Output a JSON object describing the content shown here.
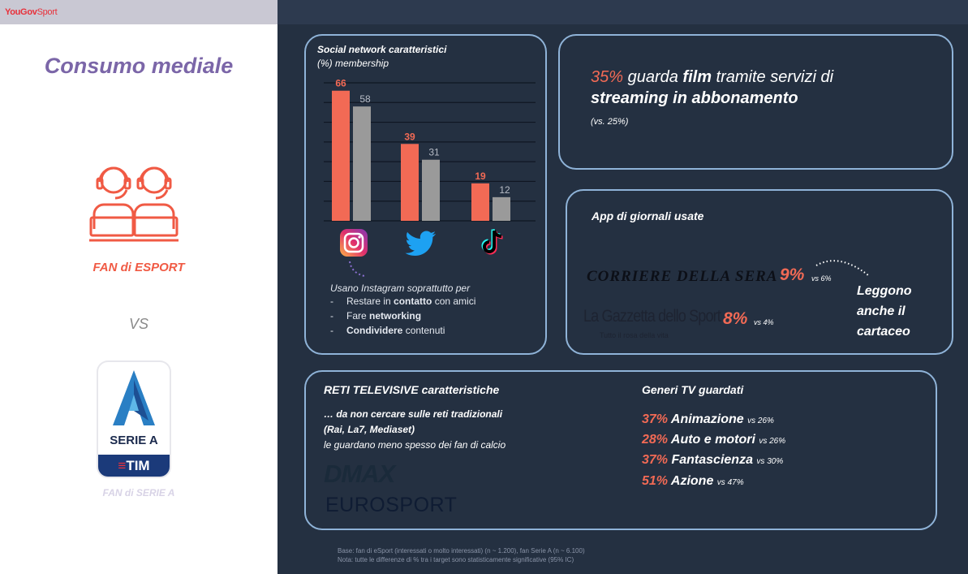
{
  "brand": {
    "name": "YouGov",
    "suffix": "Sport"
  },
  "left": {
    "title": "Consumo mediale",
    "fan_esport": "FAN di ESPORT",
    "vs": "VS",
    "seriea_label": "SERIE A",
    "seriea_sponsor_a": "≡",
    "seriea_sponsor_b": "TIM",
    "fan_seriea": "FAN di SERIE A"
  },
  "social": {
    "title": "Social network caratteristici",
    "subtitle": "(%) membership",
    "icons": [
      "instagram-icon",
      "twitter-icon",
      "tiktok-icon"
    ],
    "intro": "Usano Instagram soprattutto per",
    "bullets": [
      {
        "pre": "Restare in ",
        "bold": "contatto",
        "post": " con amici"
      },
      {
        "pre": "Fare ",
        "bold": "networking",
        "post": ""
      },
      {
        "pre": "",
        "bold": "Condividere",
        "post": " contenuti"
      }
    ]
  },
  "chart_data": {
    "type": "bar",
    "categories": [
      "Instagram",
      "Twitter",
      "TikTok"
    ],
    "series": [
      {
        "name": "FAN di ESPORT",
        "values": [
          66,
          39,
          19
        ],
        "color": "#f26a55"
      },
      {
        "name": "FAN di SERIE A",
        "values": [
          58,
          31,
          12
        ],
        "color": "#9a9a9a"
      }
    ],
    "ylim": [
      0,
      70
    ],
    "grid": true
  },
  "streaming": {
    "pct": "35%",
    "text1": " guarda ",
    "bold1": "film",
    "text2": " tramite servizi di",
    "bold2": "streaming in abbonamento",
    "vs": "(vs. 25%)"
  },
  "newspapers": {
    "title": "App di giornali usate",
    "corriere": "CORRIERE DELLA SERA",
    "corriere_pct": "9%",
    "corriere_vs": "vs 6%",
    "gazzetta": "La Gazzetta dello Sport",
    "gazzetta_tagline": "Tutto il rosa della vita",
    "gazzetta_pct": "8%",
    "gazzetta_vs": "vs 4%",
    "leggono": [
      "Leggono",
      "anche il",
      "cartaceo"
    ]
  },
  "tv": {
    "title": "RETI TELEVISIVE caratteristiche",
    "line1": "… da non cercare sulle reti tradizionali",
    "line2": "(Rai, La7, Mediaset)",
    "line3": "le guardano meno spesso dei fan di calcio",
    "dmax": "DMAX",
    "eurosport": "EUROSPORT"
  },
  "genres": {
    "title": "Generi TV guardati",
    "items": [
      {
        "pct": "37%",
        "name": "Animazione",
        "vs": "vs 26%"
      },
      {
        "pct": "28%",
        "name": "Auto e motori",
        "vs": "vs 26%"
      },
      {
        "pct": "37%",
        "name": "Fantascienza",
        "vs": "vs 30%"
      },
      {
        "pct": "51%",
        "name": "Azione",
        "vs": "vs 47%"
      }
    ]
  },
  "footer": {
    "line1": "Base: fan di eSport (interessati o molto interessati) (n ~ 1.200), fan Serie A (n ~ 6.100)",
    "line2": "Nota: tutte le differenze di % tra i target sono statisticamente significative (95% IC)"
  }
}
